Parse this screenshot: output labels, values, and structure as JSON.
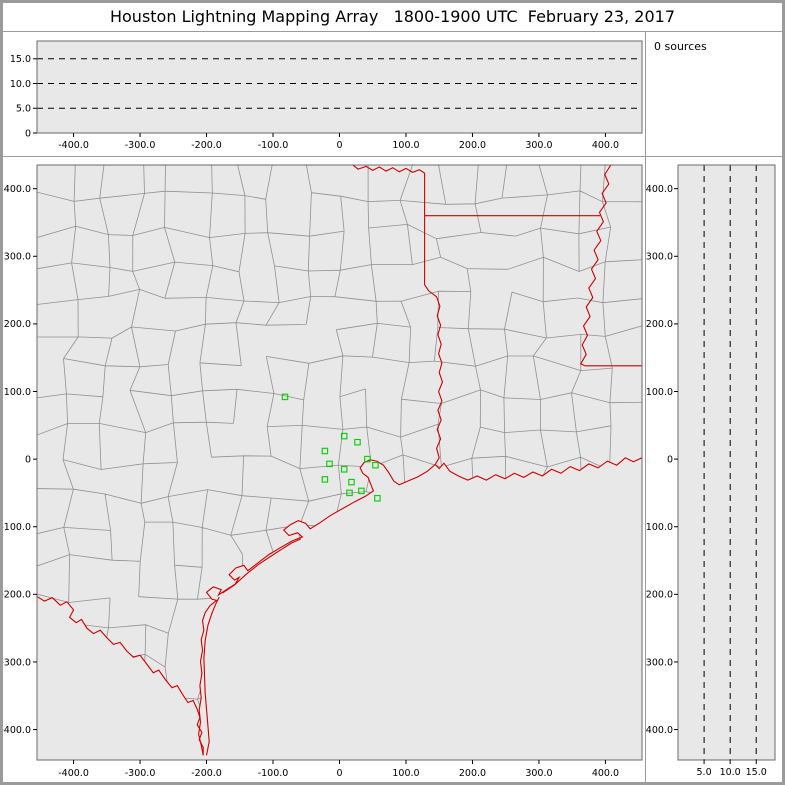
{
  "title": "Houston Lightning Mapping Array   1800-1900 UTC  February 23, 2017",
  "sources_panel": {
    "label": "0 sources"
  },
  "axes": {
    "xlim_km": [
      -455,
      455
    ],
    "ylim_km": [
      -445,
      435
    ],
    "alt_lim_km": [
      0,
      18.6
    ],
    "x_ticks": {
      "values": [
        -400,
        -300,
        -200,
        -100,
        0,
        100,
        200,
        300,
        400
      ],
      "labels": [
        "-400.0",
        "-300.0",
        "-200.0",
        "-100.0",
        "0",
        "100.0",
        "200.0",
        "300.0",
        "400.0"
      ]
    },
    "y_ticks": {
      "values": [
        400,
        300,
        200,
        100,
        0,
        -100,
        -200,
        -300,
        -400
      ],
      "labels": [
        "400.0",
        "300.0",
        "200.0",
        "100.0",
        "0",
        "-100.0",
        "-200.0",
        "-300.0",
        "-400.0"
      ]
    },
    "alt_ticks_top": {
      "values": [
        15,
        10,
        5,
        0
      ],
      "labels": [
        "15.0",
        "10.0",
        "5.0",
        "0"
      ]
    },
    "alt_ticks_right": {
      "values": [
        5,
        10,
        15
      ],
      "labels": [
        "5.0",
        "10.0",
        "15.0"
      ]
    },
    "alt_gridlines_km": [
      5,
      10,
      15
    ]
  },
  "colors": {
    "window_border": "#9b9b9b",
    "plot_bg": "#e8e8e8",
    "plot_frame": "#6a6a6a",
    "county_line": "#909090",
    "state_border": "#cc0000",
    "station_marker": "#00cc00",
    "gridline": "#000000",
    "text": "#000000"
  },
  "chart_data": [
    {
      "type": "scatter",
      "name": "altitude-vs-east-west",
      "xlim": [
        -455,
        455
      ],
      "ylim": [
        0,
        18.6
      ],
      "x_tick_labels": [
        "-400.0",
        "-300.0",
        "-200.0",
        "-100.0",
        "0",
        "100.0",
        "200.0",
        "300.0",
        "400.0"
      ],
      "y_tick_labels": [
        "0",
        "5.0",
        "10.0",
        "15.0"
      ],
      "gridlines_y": [
        5,
        10,
        15
      ],
      "n_points": 0,
      "points": []
    },
    {
      "type": "scatter",
      "name": "plan-view-map",
      "xlim": [
        -455,
        455
      ],
      "ylim": [
        -445,
        435
      ],
      "x_tick_labels": [
        "-400.0",
        "-300.0",
        "-200.0",
        "-100.0",
        "0",
        "100.0",
        "200.0",
        "300.0",
        "400.0"
      ],
      "y_tick_labels": [
        "400.0",
        "300.0",
        "200.0",
        "100.0",
        "0",
        "-100.0",
        "-200.0",
        "-300.0",
        "-400.0"
      ],
      "n_lightning_points": 0,
      "lightning_points": [],
      "stations": {
        "marker": "open-square",
        "color": "#00cc00",
        "points_km": [
          [
            -82,
            92
          ],
          [
            7,
            34
          ],
          [
            27,
            25
          ],
          [
            -22,
            12
          ],
          [
            -15,
            -7
          ],
          [
            7,
            -15
          ],
          [
            42,
            0
          ],
          [
            54,
            -9
          ],
          [
            -22,
            -30
          ],
          [
            18,
            -34
          ],
          [
            15,
            -50
          ],
          [
            33,
            -47
          ],
          [
            57,
            -58
          ]
        ]
      }
    },
    {
      "type": "scatter",
      "name": "altitude-vs-north-south",
      "xlim": [
        0,
        18.6
      ],
      "ylim": [
        -445,
        435
      ],
      "x_tick_labels": [
        "5.0",
        "10.0",
        "15.0"
      ],
      "y_tick_labels": [
        "400.0",
        "300.0",
        "200.0",
        "100.0",
        "0",
        "-100.0",
        "-200.0",
        "-300.0",
        "-400.0"
      ],
      "gridlines_x": [
        5,
        10,
        15
      ],
      "n_points": 0,
      "points": []
    }
  ]
}
